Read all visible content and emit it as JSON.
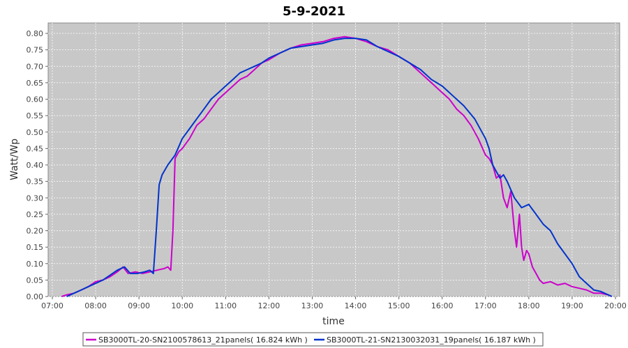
{
  "chart_data": {
    "type": "line",
    "title": "5-9-2021",
    "xlabel": "time",
    "ylabel": "Watt/Wp",
    "xlim": [
      "07:00",
      "20:00"
    ],
    "ylim": [
      0,
      0.8
    ],
    "x_ticks": [
      "07:00",
      "08:00",
      "09:00",
      "10:00",
      "11:00",
      "12:00",
      "13:00",
      "14:00",
      "15:00",
      "16:00",
      "17:00",
      "18:00",
      "19:00",
      "20:00"
    ],
    "y_ticks": [
      "0.00",
      "0.05",
      "0.10",
      "0.15",
      "0.20",
      "0.25",
      "0.30",
      "0.35",
      "0.40",
      "0.45",
      "0.50",
      "0.55",
      "0.60",
      "0.65",
      "0.70",
      "0.75",
      "0.80"
    ],
    "grid": true,
    "legend_position": "bottom",
    "series": [
      {
        "name": "SB3000TL-20-SN2100578613_21panels",
        "legend_label": "SB3000TL-20-SN2100578613_21panels( 16.824 kWh )",
        "color": "#cc00cc",
        "points": [
          [
            "07:13",
            0.0
          ],
          [
            "07:20",
            0.005
          ],
          [
            "07:30",
            0.01
          ],
          [
            "07:40",
            0.02
          ],
          [
            "07:50",
            0.03
          ],
          [
            "08:00",
            0.045
          ],
          [
            "08:10",
            0.05
          ],
          [
            "08:20",
            0.06
          ],
          [
            "08:30",
            0.075
          ],
          [
            "08:38",
            0.09
          ],
          [
            "08:45",
            0.07
          ],
          [
            "08:55",
            0.075
          ],
          [
            "09:05",
            0.07
          ],
          [
            "09:15",
            0.075
          ],
          [
            "09:25",
            0.08
          ],
          [
            "09:35",
            0.085
          ],
          [
            "09:40",
            0.09
          ],
          [
            "09:44",
            0.08
          ],
          [
            "09:47",
            0.2
          ],
          [
            "09:50",
            0.42
          ],
          [
            "09:55",
            0.44
          ],
          [
            "10:00",
            0.45
          ],
          [
            "10:10",
            0.48
          ],
          [
            "10:20",
            0.52
          ],
          [
            "10:30",
            0.54
          ],
          [
            "10:40",
            0.57
          ],
          [
            "10:50",
            0.6
          ],
          [
            "11:00",
            0.62
          ],
          [
            "11:10",
            0.64
          ],
          [
            "11:20",
            0.66
          ],
          [
            "11:30",
            0.67
          ],
          [
            "11:40",
            0.69
          ],
          [
            "11:50",
            0.71
          ],
          [
            "12:00",
            0.72
          ],
          [
            "12:15",
            0.74
          ],
          [
            "12:30",
            0.755
          ],
          [
            "12:45",
            0.765
          ],
          [
            "13:00",
            0.77
          ],
          [
            "13:15",
            0.775
          ],
          [
            "13:30",
            0.785
          ],
          [
            "13:45",
            0.79
          ],
          [
            "14:00",
            0.785
          ],
          [
            "14:15",
            0.775
          ],
          [
            "14:30",
            0.76
          ],
          [
            "14:45",
            0.75
          ],
          [
            "15:00",
            0.73
          ],
          [
            "15:15",
            0.71
          ],
          [
            "15:30",
            0.68
          ],
          [
            "15:45",
            0.65
          ],
          [
            "16:00",
            0.62
          ],
          [
            "16:10",
            0.6
          ],
          [
            "16:20",
            0.57
          ],
          [
            "16:30",
            0.55
          ],
          [
            "16:40",
            0.52
          ],
          [
            "16:50",
            0.48
          ],
          [
            "17:00",
            0.43
          ],
          [
            "17:05",
            0.42
          ],
          [
            "17:10",
            0.4
          ],
          [
            "17:15",
            0.36
          ],
          [
            "17:20",
            0.37
          ],
          [
            "17:25",
            0.3
          ],
          [
            "17:30",
            0.27
          ],
          [
            "17:35",
            0.32
          ],
          [
            "17:40",
            0.2
          ],
          [
            "17:43",
            0.15
          ],
          [
            "17:47",
            0.25
          ],
          [
            "17:50",
            0.15
          ],
          [
            "17:53",
            0.11
          ],
          [
            "17:57",
            0.14
          ],
          [
            "18:00",
            0.13
          ],
          [
            "18:05",
            0.09
          ],
          [
            "18:10",
            0.07
          ],
          [
            "18:15",
            0.05
          ],
          [
            "18:20",
            0.04
          ],
          [
            "18:30",
            0.045
          ],
          [
            "18:40",
            0.035
          ],
          [
            "18:50",
            0.04
          ],
          [
            "19:00",
            0.03
          ],
          [
            "19:10",
            0.025
          ],
          [
            "19:20",
            0.02
          ],
          [
            "19:30",
            0.01
          ],
          [
            "19:40",
            0.01
          ],
          [
            "19:50",
            0.005
          ],
          [
            "19:55",
            0.0
          ]
        ]
      },
      {
        "name": "SB3000TL-21-SN2130032031_19panels",
        "legend_label": "SB3000TL-21-SN2130032031_19panels( 16.187 kWh )",
        "color": "#0033cc",
        "points": [
          [
            "07:20",
            0.0
          ],
          [
            "07:30",
            0.01
          ],
          [
            "07:40",
            0.02
          ],
          [
            "07:50",
            0.03
          ],
          [
            "08:00",
            0.04
          ],
          [
            "08:10",
            0.05
          ],
          [
            "08:20",
            0.065
          ],
          [
            "08:30",
            0.08
          ],
          [
            "08:40",
            0.09
          ],
          [
            "08:48",
            0.07
          ],
          [
            "08:58",
            0.07
          ],
          [
            "09:08",
            0.075
          ],
          [
            "09:15",
            0.08
          ],
          [
            "09:20",
            0.07
          ],
          [
            "09:24",
            0.2
          ],
          [
            "09:28",
            0.34
          ],
          [
            "09:32",
            0.37
          ],
          [
            "09:40",
            0.4
          ],
          [
            "09:50",
            0.43
          ],
          [
            "10:00",
            0.48
          ],
          [
            "10:10",
            0.51
          ],
          [
            "10:20",
            0.54
          ],
          [
            "10:30",
            0.57
          ],
          [
            "10:40",
            0.6
          ],
          [
            "10:50",
            0.62
          ],
          [
            "11:00",
            0.64
          ],
          [
            "11:10",
            0.66
          ],
          [
            "11:20",
            0.68
          ],
          [
            "11:30",
            0.69
          ],
          [
            "11:40",
            0.7
          ],
          [
            "11:50",
            0.71
          ],
          [
            "12:00",
            0.725
          ],
          [
            "12:15",
            0.74
          ],
          [
            "12:30",
            0.755
          ],
          [
            "12:45",
            0.76
          ],
          [
            "13:00",
            0.765
          ],
          [
            "13:15",
            0.77
          ],
          [
            "13:30",
            0.78
          ],
          [
            "13:45",
            0.785
          ],
          [
            "14:00",
            0.785
          ],
          [
            "14:15",
            0.78
          ],
          [
            "14:30",
            0.76
          ],
          [
            "14:45",
            0.745
          ],
          [
            "15:00",
            0.73
          ],
          [
            "15:15",
            0.71
          ],
          [
            "15:30",
            0.69
          ],
          [
            "15:45",
            0.66
          ],
          [
            "16:00",
            0.64
          ],
          [
            "16:15",
            0.61
          ],
          [
            "16:30",
            0.58
          ],
          [
            "16:45",
            0.54
          ],
          [
            "17:00",
            0.48
          ],
          [
            "17:05",
            0.45
          ],
          [
            "17:10",
            0.4
          ],
          [
            "17:15",
            0.38
          ],
          [
            "17:20",
            0.36
          ],
          [
            "17:25",
            0.37
          ],
          [
            "17:30",
            0.35
          ],
          [
            "17:40",
            0.3
          ],
          [
            "17:50",
            0.27
          ],
          [
            "18:00",
            0.28
          ],
          [
            "18:10",
            0.25
          ],
          [
            "18:20",
            0.22
          ],
          [
            "18:30",
            0.2
          ],
          [
            "18:40",
            0.16
          ],
          [
            "18:50",
            0.13
          ],
          [
            "19:00",
            0.1
          ],
          [
            "19:10",
            0.06
          ],
          [
            "19:20",
            0.04
          ],
          [
            "19:30",
            0.02
          ],
          [
            "19:40",
            0.015
          ],
          [
            "19:50",
            0.005
          ],
          [
            "19:55",
            0.0
          ]
        ]
      }
    ]
  }
}
